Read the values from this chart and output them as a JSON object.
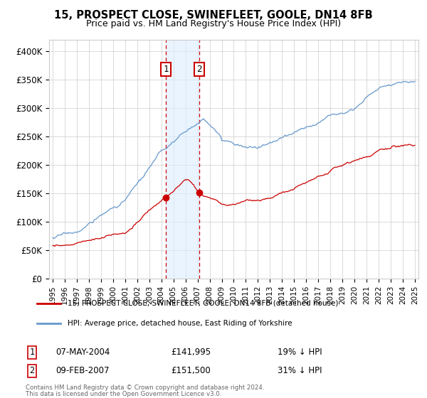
{
  "title": "15, PROSPECT CLOSE, SWINEFLEET, GOOLE, DN14 8FB",
  "subtitle": "Price paid vs. HM Land Registry's House Price Index (HPI)",
  "ylim": [
    0,
    420000
  ],
  "yticks": [
    0,
    50000,
    100000,
    150000,
    200000,
    250000,
    300000,
    350000,
    400000
  ],
  "ytick_labels": [
    "£0",
    "£50K",
    "£100K",
    "£150K",
    "£200K",
    "£250K",
    "£300K",
    "£350K",
    "£400K"
  ],
  "transaction1_date": 2004.37,
  "transaction1_price": 141995,
  "transaction2_date": 2007.12,
  "transaction2_price": 151500,
  "shade_color": "#ddeeff",
  "shade_alpha": 0.6,
  "red_line_color": "#cc0000",
  "blue_line_color": "#6699cc",
  "marker_box_color": "#cc0000",
  "legend_line1": "15, PROSPECT CLOSE, SWINEFLEET, GOOLE, DN14 8FB (detached house)",
  "legend_line2": "HPI: Average price, detached house, East Riding of Yorkshire",
  "footnote1": "Contains HM Land Registry data © Crown copyright and database right 2024.",
  "footnote2": "This data is licensed under the Open Government Licence v3.0.",
  "background_color": "#ffffff",
  "grid_color": "#cccccc",
  "xlim_left": 1994.7,
  "xlim_right": 2025.3
}
